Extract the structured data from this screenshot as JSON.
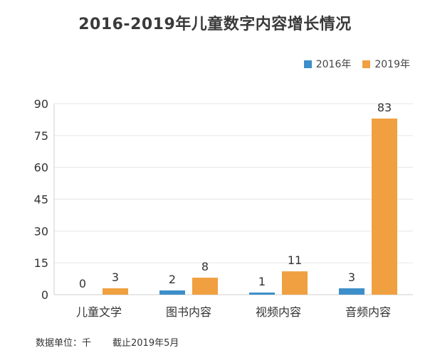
{
  "chart_data": {
    "type": "bar",
    "title": "2016-2019年儿童数字内容增长情况",
    "categories": [
      "儿童文学",
      "图书内容",
      "视频内容",
      "音频内容"
    ],
    "series": [
      {
        "name": "2016年",
        "values": [
          0,
          2,
          1,
          3
        ],
        "color": "#3d8fc9"
      },
      {
        "name": "2019年",
        "values": [
          3,
          8,
          11,
          83
        ],
        "color": "#f0a040"
      }
    ],
    "yticks": [
      0,
      15,
      30,
      45,
      60,
      75,
      90
    ],
    "ylim": [
      0,
      90
    ],
    "grid": true,
    "legend_position": "top-right"
  },
  "footer": {
    "unit_note": "数据单位：千",
    "date_note": "截止2019年5月"
  }
}
